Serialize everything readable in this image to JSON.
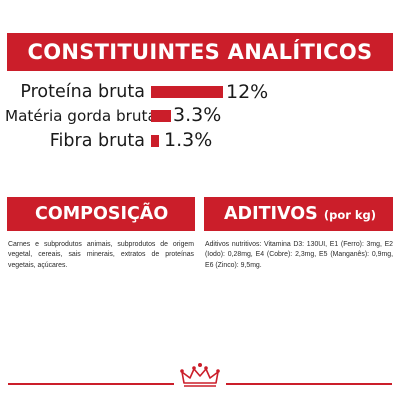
{
  "header": {
    "title": "CONSTITUINTES ANALÍTICOS"
  },
  "analytics": [
    {
      "label": "Proteína bruta",
      "value": "12%",
      "fraction": 0.12
    },
    {
      "label": "Matéria gorda bruta",
      "value": "3.3%",
      "fraction": 0.033
    },
    {
      "label": "Fibra bruta",
      "value": "1.3%",
      "fraction": 0.013
    }
  ],
  "composition": {
    "title": "COMPOSIÇÃO",
    "text": "Carnes e subprodutos animais, subprodutos de origem vegetal, cereais, sais minerais, extratos de proteínas vegetais, açúcares."
  },
  "additives": {
    "title": "ADITIVOS",
    "subtitle": "(por kg)",
    "text": "Aditivos nutritivos: Vitamina D3: 130UI, E1 (Ferro): 3mg, E2 (Iodo): 0,28mg, E4 (Cobre): 2,3mg, E5 (Manganês): 0,9mg, E6 (Zinco): 9,5mg."
  },
  "colors": {
    "brand_red": "#cb1e2a",
    "text": "#1a1a1a"
  },
  "footer": {
    "logo_icon": "crown-icon"
  }
}
